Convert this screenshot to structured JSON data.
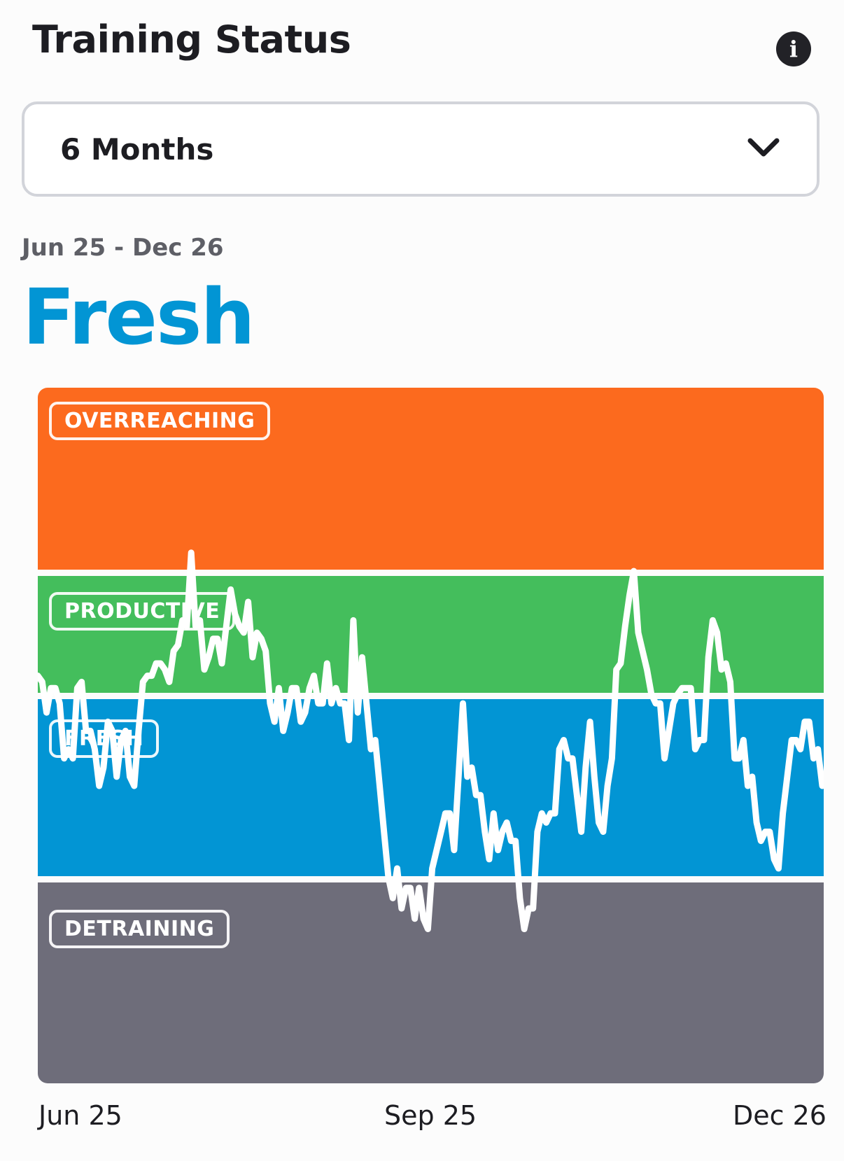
{
  "header": {
    "title": "Training Status",
    "info_icon": "info-icon"
  },
  "range_selector": {
    "selected": "6 Months",
    "icon": "chevron-down-icon"
  },
  "summary": {
    "date_range": "Jun 25 - Dec 26",
    "status": "Fresh"
  },
  "colors": {
    "overreaching": "#fc6a1e",
    "productive": "#44be5c",
    "fresh": "#0295d4",
    "detraining": "#6e6d7a",
    "line": "#ffffff",
    "accent": "#0295d4"
  },
  "chart_data": {
    "type": "line",
    "zones": [
      "OVERREACHING",
      "PRODUCTIVE",
      "FRESH",
      "DETRAINING"
    ],
    "x_tick_labels": [
      "Jun 25",
      "Sep 25",
      "Dec 26"
    ],
    "y_scale_note": "zone index, 0 = bottom of DETRAINING, 4 = top of OVERREACHING",
    "ylim": [
      0,
      4
    ],
    "series": [
      {
        "values": [
          2.15,
          2.1,
          1.9,
          2.05,
          2.05,
          1.95,
          1.65,
          1.7,
          1.65,
          2.05,
          2.1,
          1.8,
          1.8,
          1.7,
          1.5,
          1.6,
          1.85,
          1.8,
          1.55,
          1.75,
          1.8,
          1.55,
          1.5,
          1.8,
          2.1,
          2.15,
          2.15,
          2.25,
          2.25,
          2.2,
          2.1,
          2.35,
          2.4,
          2.6,
          2.55,
          3.1,
          2.55,
          2.6,
          2.2,
          2.3,
          2.45,
          2.45,
          2.25,
          2.55,
          2.85,
          2.65,
          2.55,
          2.5,
          2.75,
          2.3,
          2.5,
          2.45,
          2.35,
          1.95,
          1.85,
          2.05,
          1.8,
          1.9,
          2.05,
          2.05,
          1.85,
          1.9,
          2.05,
          2.15,
          1.95,
          1.95,
          2.25,
          1.95,
          2.05,
          1.95,
          1.95,
          1.75,
          2.6,
          1.9,
          2.3,
          1.95,
          1.7,
          1.75,
          1.5,
          1.25,
          1.0,
          0.9,
          1.05,
          0.85,
          0.95,
          0.95,
          0.8,
          0.95,
          0.8,
          0.75,
          1.05,
          1.15,
          1.25,
          1.35,
          1.35,
          1.15,
          1.55,
          1.95,
          1.55,
          1.6,
          1.45,
          1.45,
          1.25,
          1.1,
          1.35,
          1.15,
          1.25,
          1.3,
          1.2,
          1.2,
          0.9,
          0.75,
          0.85,
          0.85,
          1.25,
          1.35,
          1.3,
          1.35,
          1.35,
          1.7,
          1.75,
          1.65,
          1.65,
          1.45,
          1.25,
          1.6,
          1.85,
          1.55,
          1.3,
          1.25,
          1.5,
          1.65,
          2.2,
          2.25,
          2.55,
          2.8,
          3.0,
          2.5,
          2.35,
          2.2,
          2.0,
          1.95,
          1.95,
          1.65,
          1.8,
          1.95,
          2.0,
          2.05,
          2.05,
          2.05,
          1.7,
          1.75,
          1.75,
          2.3,
          2.6,
          2.5,
          2.2,
          2.25,
          2.1,
          1.65,
          1.65,
          1.75,
          1.5,
          1.55,
          1.3,
          1.2,
          1.25,
          1.25,
          1.1,
          1.05,
          1.35,
          1.55,
          1.75,
          1.75,
          1.7,
          1.85,
          1.85,
          1.65,
          1.7,
          1.5
        ]
      }
    ]
  }
}
